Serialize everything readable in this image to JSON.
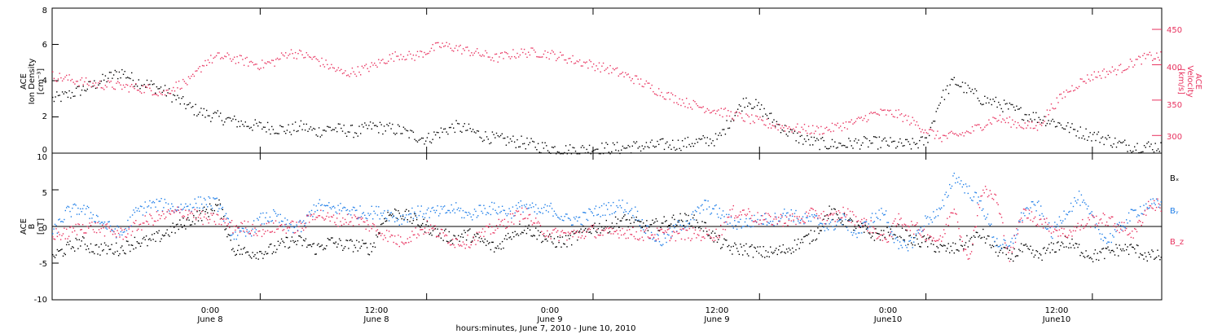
{
  "chart_data": [
    {
      "type": "scatter",
      "panel": "top",
      "ylabel_lines": [
        "ACE",
        "Ion Density",
        "[cm⁻³]"
      ],
      "y2label_lines": [
        "ACE",
        "Velocity",
        "[km/s]"
      ],
      "ylim": [
        0,
        8
      ],
      "yticks": [
        "0",
        "2",
        "4",
        "6",
        "8"
      ],
      "y2lim": [
        275,
        480
      ],
      "y2ticks": [
        "300",
        "350",
        "400",
        "450"
      ],
      "xlim_hours": [
        0,
        80
      ],
      "series": [
        {
          "color": "#000000",
          "x": [
            0,
            1,
            2,
            3,
            4,
            5,
            6,
            7,
            8,
            9,
            10,
            11,
            12,
            13,
            14,
            15,
            16,
            17,
            18,
            19,
            20,
            21,
            22,
            23,
            24,
            25,
            26,
            27,
            28,
            29,
            30,
            31,
            32,
            33,
            34,
            35,
            36,
            37,
            38,
            39,
            40,
            41,
            42,
            43,
            44,
            45,
            46,
            47,
            48,
            49,
            50,
            51,
            52,
            53,
            54,
            55,
            56,
            57,
            58,
            59,
            60,
            61,
            62,
            63,
            64,
            65,
            66,
            67,
            68,
            69,
            70,
            71,
            72,
            73,
            74,
            75,
            76,
            77,
            78,
            79
          ],
          "values": [
            3.0,
            3.2,
            3.5,
            3.8,
            4.2,
            4.5,
            4.0,
            3.8,
            3.5,
            3.0,
            2.5,
            2.2,
            2.0,
            1.8,
            1.6,
            1.5,
            1.4,
            1.3,
            1.5,
            1.2,
            1.4,
            1.3,
            1.2,
            1.5,
            1.4,
            1.3,
            1.0,
            0.8,
            1.2,
            1.5,
            1.3,
            1.0,
            0.8,
            0.7,
            0.6,
            0.4,
            0.3,
            0.2,
            0.2,
            0.3,
            0.3,
            0.3,
            0.4,
            0.4,
            0.5,
            0.5,
            0.6,
            0.7,
            0.8,
            2.0,
            3.0,
            2.5,
            1.8,
            1.2,
            0.8,
            0.6,
            0.5,
            0.5,
            0.6,
            0.6,
            0.6,
            0.5,
            0.5,
            0.7,
            3.0,
            4.0,
            3.5,
            3.0,
            2.8,
            2.5,
            2.2,
            2.0,
            1.8,
            1.5,
            1.2,
            1.0,
            0.8,
            0.5,
            0.4,
            0.4
          ]
        },
        {
          "color": "#e8325f",
          "axis": "right",
          "x": [
            0,
            1,
            2,
            3,
            4,
            5,
            6,
            7,
            8,
            9,
            10,
            11,
            12,
            13,
            14,
            15,
            16,
            17,
            18,
            19,
            20,
            21,
            22,
            23,
            24,
            25,
            26,
            27,
            28,
            29,
            30,
            31,
            32,
            33,
            34,
            35,
            36,
            37,
            38,
            39,
            40,
            41,
            42,
            43,
            44,
            45,
            46,
            47,
            48,
            49,
            50,
            51,
            52,
            53,
            54,
            55,
            56,
            57,
            58,
            59,
            60,
            61,
            62,
            63,
            64,
            65,
            66,
            67,
            68,
            69,
            70,
            71,
            72,
            73,
            74,
            75,
            76,
            77,
            78,
            79
          ],
          "values": [
            385,
            381,
            377,
            373,
            372,
            370,
            368,
            366,
            360,
            372,
            378,
            405,
            412,
            410,
            405,
            400,
            405,
            418,
            415,
            408,
            398,
            388,
            392,
            398,
            408,
            415,
            412,
            420,
            428,
            425,
            420,
            415,
            410,
            415,
            418,
            418,
            415,
            410,
            405,
            400,
            395,
            388,
            380,
            370,
            360,
            352,
            345,
            340,
            335,
            330,
            325,
            320,
            315,
            312,
            310,
            308,
            310,
            315,
            320,
            330,
            333,
            330,
            320,
            308,
            298,
            300,
            305,
            315,
            325,
            320,
            315,
            312,
            340,
            360,
            375,
            385,
            390,
            395,
            405,
            412
          ]
        }
      ]
    },
    {
      "type": "scatter",
      "panel": "bottom",
      "ylabel_lines": [
        "ACE",
        "B",
        "[nT]"
      ],
      "ylim": [
        -10,
        10
      ],
      "yticks": [
        "-10",
        "-5",
        "0",
        "5",
        "10"
      ],
      "xlim_hours": [
        0,
        80
      ],
      "series": [
        {
          "name": "Bₓ",
          "color": "#000000",
          "x": [
            0,
            1,
            2,
            3,
            4,
            5,
            6,
            7,
            8,
            9,
            10,
            11,
            12,
            13,
            14,
            15,
            16,
            17,
            18,
            19,
            20,
            21,
            22,
            23,
            24,
            25,
            26,
            27,
            28,
            29,
            30,
            31,
            32,
            33,
            34,
            35,
            36,
            37,
            38,
            39,
            40,
            41,
            42,
            43,
            44,
            45,
            46,
            47,
            48,
            49,
            50,
            51,
            52,
            53,
            54,
            55,
            56,
            57,
            58,
            59,
            60,
            61,
            62,
            63,
            64,
            65,
            66,
            67,
            68,
            69,
            70,
            71,
            72,
            73,
            74,
            75,
            76,
            77,
            78,
            79
          ],
          "values": [
            -4,
            -3,
            -2,
            -3,
            -3,
            -3,
            -2,
            -2,
            -1,
            0,
            1,
            2,
            3,
            -3,
            -3.5,
            -3.5,
            -3,
            -2,
            -2,
            -3,
            -2,
            -2.5,
            -2.5,
            -3,
            1.5,
            2,
            1,
            0,
            -1,
            -1.5,
            -1,
            -2,
            -3,
            -1,
            0,
            -1,
            -2,
            -2,
            -1,
            0,
            0,
            1,
            0.5,
            0,
            0.5,
            1,
            1,
            0,
            -2,
            -3,
            -3,
            -3.5,
            -3.5,
            -3,
            -2,
            -1,
            2,
            1,
            0,
            -1,
            -1,
            -0.5,
            -2,
            -2,
            -3,
            -3,
            -2,
            -1,
            -3,
            -4,
            -3,
            -4,
            -3,
            -2,
            -3,
            -4,
            -3.5,
            -3,
            -3,
            -4
          ]
        },
        {
          "name": "Bᵧ",
          "color": "#1f7ee8",
          "x": [
            0,
            1,
            2,
            3,
            4,
            5,
            6,
            7,
            8,
            9,
            10,
            11,
            12,
            13,
            14,
            15,
            16,
            17,
            18,
            19,
            20,
            21,
            22,
            23,
            24,
            25,
            26,
            27,
            28,
            29,
            30,
            31,
            32,
            33,
            34,
            35,
            36,
            37,
            38,
            39,
            40,
            41,
            42,
            43,
            44,
            45,
            46,
            47,
            48,
            49,
            50,
            51,
            52,
            53,
            54,
            55,
            56,
            57,
            58,
            59,
            60,
            61,
            62,
            63,
            64,
            65,
            66,
            67,
            68,
            69,
            70,
            71,
            72,
            73,
            74,
            75,
            76,
            77,
            78,
            79
          ],
          "values": [
            -1,
            2,
            2.5,
            1.5,
            0,
            -1,
            2,
            3,
            3,
            2.5,
            3,
            3.5,
            3,
            -1,
            -1,
            1,
            1.5,
            0,
            0,
            3,
            2.5,
            2.5,
            2,
            2,
            2,
            1,
            2,
            2,
            2,
            2.5,
            1.5,
            2.5,
            2.5,
            2,
            3,
            2,
            2.5,
            1,
            1,
            2,
            2.5,
            3,
            2,
            -1,
            -2,
            0,
            1,
            3,
            2,
            0.5,
            0.5,
            1,
            1,
            2,
            1,
            1,
            0,
            1,
            -1,
            1,
            2,
            -3,
            -2,
            1,
            2,
            7,
            5,
            3,
            -2,
            -3,
            2,
            3,
            -1,
            2,
            4,
            1,
            -2,
            0,
            2,
            3
          ]
        },
        {
          "name": "B_z",
          "color": "#e8325f",
          "x": [
            0,
            1,
            2,
            3,
            4,
            5,
            6,
            7,
            8,
            9,
            10,
            11,
            12,
            13,
            14,
            15,
            16,
            17,
            18,
            19,
            20,
            21,
            22,
            23,
            24,
            25,
            26,
            27,
            28,
            29,
            30,
            31,
            32,
            33,
            34,
            35,
            36,
            37,
            38,
            39,
            40,
            41,
            42,
            43,
            44,
            45,
            46,
            47,
            48,
            49,
            50,
            51,
            52,
            53,
            54,
            55,
            56,
            57,
            58,
            59,
            60,
            61,
            62,
            63,
            64,
            65,
            66,
            67,
            68,
            69,
            70,
            71,
            72,
            73,
            74,
            75,
            76,
            77,
            78,
            79
          ],
          "values": [
            -1,
            -1,
            0,
            0,
            -0.5,
            -1,
            0,
            1,
            1.5,
            2,
            2,
            1,
            1,
            0,
            0,
            -0.5,
            0,
            0,
            0,
            2,
            1,
            1,
            1,
            0,
            -1,
            -2,
            -1,
            0,
            -1,
            -2,
            -2,
            -1,
            0,
            1,
            2,
            0,
            -1,
            -1,
            -1,
            -0.5,
            -1,
            -0.5,
            -1,
            -1,
            -1,
            -1,
            -1,
            -1,
            -1,
            2,
            2,
            1,
            1,
            1,
            1,
            2,
            1,
            2,
            1,
            0,
            -2,
            1,
            0,
            -1,
            -2,
            3,
            -5,
            5,
            4,
            -4,
            2,
            1,
            0,
            -1,
            0,
            1,
            1,
            0,
            -1,
            3
          ]
        }
      ],
      "legend_placement": "right"
    }
  ],
  "xaxis": {
    "ticks": [
      {
        "time": "0:00",
        "day": "June 8"
      },
      {
        "time": "12:00",
        "day": "June 8"
      },
      {
        "time": "0:00",
        "day": "June 9"
      },
      {
        "time": "12:00",
        "day": "June 9"
      },
      {
        "time": "0:00",
        "day": "June10"
      },
      {
        "time": "12:00",
        "day": "June10"
      }
    ],
    "tick_hours": [
      15,
      27,
      39,
      51,
      63,
      75
    ],
    "label": "hours:minutes,  June  7, 2010 - June 10, 2010"
  },
  "colors": {
    "black": "#000000",
    "blue": "#1f7ee8",
    "red": "#e8325f"
  }
}
